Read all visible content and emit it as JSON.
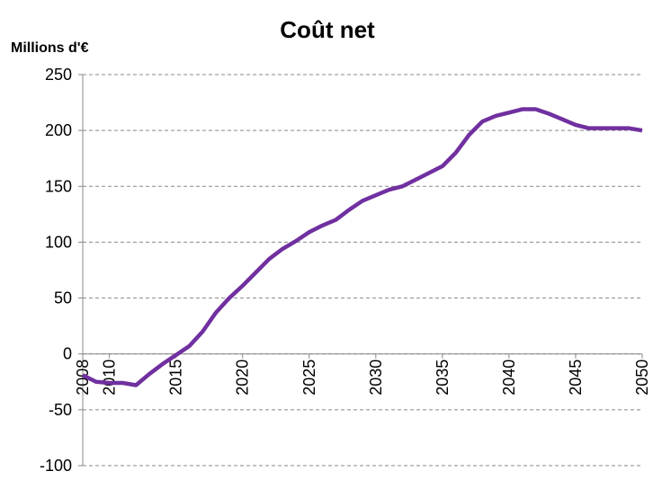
{
  "chart_data": {
    "type": "line",
    "title": "Coût net",
    "y_label": "Millions d'€",
    "x": [
      2008,
      2009,
      2010,
      2011,
      2012,
      2013,
      2014,
      2015,
      2016,
      2017,
      2018,
      2019,
      2020,
      2021,
      2022,
      2023,
      2024,
      2025,
      2026,
      2027,
      2028,
      2029,
      2030,
      2031,
      2032,
      2033,
      2034,
      2035,
      2036,
      2037,
      2038,
      2039,
      2040,
      2041,
      2042,
      2043,
      2044,
      2045,
      2046,
      2047,
      2048,
      2049,
      2050
    ],
    "series": [
      {
        "name": "Coût net",
        "color": "#7030a0",
        "values": [
          -19,
          -25,
          -26,
          -26,
          -28,
          -18,
          -9,
          -1,
          7,
          20,
          37,
          50,
          61,
          73,
          85,
          94,
          101,
          109,
          115,
          120,
          129,
          137,
          142,
          147,
          150,
          156,
          162,
          168,
          180,
          196,
          208,
          213,
          216,
          219,
          219,
          215,
          210,
          205,
          202,
          202,
          202,
          202,
          200
        ]
      }
    ],
    "xlim": [
      2008,
      2050
    ],
    "xticks": [
      2008,
      2010,
      2015,
      2020,
      2025,
      2030,
      2035,
      2040,
      2045,
      2050
    ],
    "ylim": [
      -100,
      250
    ],
    "yticks": [
      -100,
      -50,
      0,
      50,
      100,
      150,
      200,
      250
    ],
    "grid": true
  }
}
